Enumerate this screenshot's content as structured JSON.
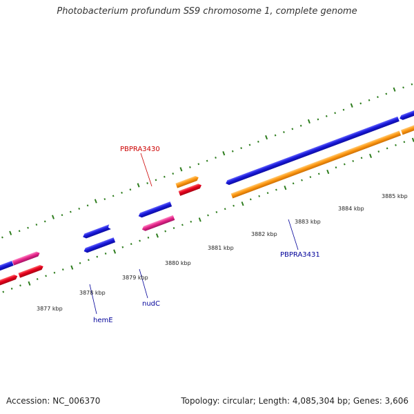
{
  "title": "Photobacterium profundum SS9 chromosome 1, complete genome",
  "footer": {
    "accession": "Accession: NC_006370",
    "stats": "Topology: circular; Length: 4,085,304 bp; Genes: 3,606"
  },
  "colors": {
    "backbone": "#888888",
    "tick": "#2e7d1e",
    "gene_blue": "#1a1adc",
    "gene_orange": "#ff9a14",
    "gene_red": "#e8001e",
    "gene_pink": "#e8278c",
    "label_red": "#cc0000",
    "label_blue": "#000099"
  },
  "scale_labels": [
    "3877 kbp",
    "3878 kbp",
    "3879 kbp",
    "3880 kbp",
    "3881 kbp",
    "3882 kbp",
    "3883 kbp",
    "3884 kbp",
    "3885 kbp"
  ],
  "gene_labels": [
    {
      "name": "PBPRA3430",
      "color": "red"
    },
    {
      "name": "hemE",
      "color": "blue"
    },
    {
      "name": "nudC",
      "color": "blue"
    },
    {
      "name": "PBPRA3431",
      "color": "blue"
    }
  ]
}
